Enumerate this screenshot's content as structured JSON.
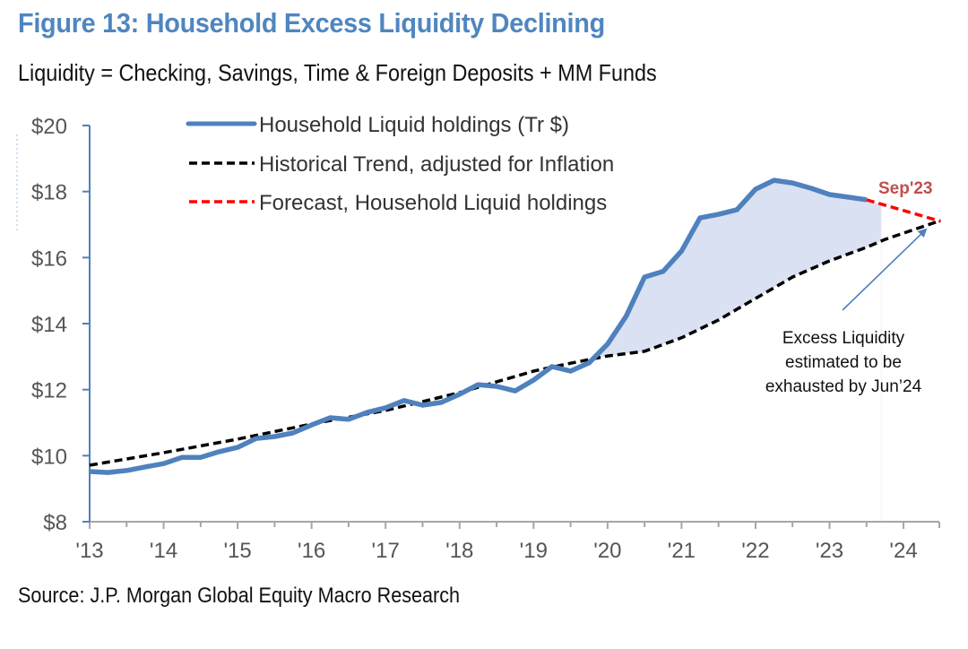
{
  "header": {
    "title": "Figure 13: Household Excess Liquidity Declining",
    "subtitle": "Liquidity = Checking, Savings, Time & Foreign Deposits + MM Funds"
  },
  "footer": {
    "source": "Source: J.P. Morgan Global Equity Macro Research"
  },
  "colors": {
    "title": "#4f86c0",
    "holdings": "#4f81bd",
    "trend": "#000000",
    "forecast": "#ff0000",
    "fill": "#dae1f2",
    "annotation_red": "#c0504d",
    "axis_y": "#4f81bd",
    "axis_x": "#a6a6a6"
  },
  "chart_data": {
    "type": "line",
    "title": "Figure 13: Household Excess Liquidity Declining",
    "subtitle": "Liquidity = Checking, Savings, Time & Foreign Deposits + MM Funds",
    "xlabel": "",
    "ylabel": "",
    "xlim": [
      2013,
      2024.5
    ],
    "ylim": [
      8,
      20
    ],
    "x_ticks": [
      2013,
      2014,
      2015,
      2016,
      2017,
      2018,
      2019,
      2020,
      2021,
      2022,
      2023,
      2024
    ],
    "x_tick_labels": [
      "'13",
      "'14",
      "'15",
      "'16",
      "'17",
      "'18",
      "'19",
      "'20",
      "'21",
      "'22",
      "'23",
      "'24"
    ],
    "y_ticks": [
      8,
      10,
      12,
      14,
      16,
      18,
      20
    ],
    "y_tick_labels": [
      "$8",
      "$10",
      "$12",
      "$14",
      "$16",
      "$18",
      "$20"
    ],
    "grid": false,
    "legend_position": "top-left",
    "series": [
      {
        "name": "Household Liquid holdings (Tr $)",
        "style": "solid",
        "x": [
          2013.0,
          2013.25,
          2013.5,
          2013.75,
          2014.0,
          2014.25,
          2014.5,
          2014.75,
          2015.0,
          2015.25,
          2015.5,
          2015.75,
          2016.0,
          2016.25,
          2016.5,
          2016.75,
          2017.0,
          2017.25,
          2017.5,
          2017.75,
          2018.0,
          2018.25,
          2018.5,
          2018.75,
          2019.0,
          2019.25,
          2019.5,
          2019.75,
          2020.0,
          2020.25,
          2020.5,
          2020.75,
          2021.0,
          2021.25,
          2021.5,
          2021.75,
          2022.0,
          2022.25,
          2022.5,
          2022.75,
          2023.0,
          2023.25,
          2023.5
        ],
        "values": [
          9.52,
          9.49,
          9.55,
          9.66,
          9.76,
          9.95,
          9.95,
          10.12,
          10.25,
          10.52,
          10.58,
          10.69,
          10.93,
          11.15,
          11.1,
          11.31,
          11.45,
          11.67,
          11.53,
          11.61,
          11.86,
          12.15,
          12.1,
          11.96,
          12.29,
          12.7,
          12.56,
          12.81,
          13.38,
          14.22,
          15.41,
          15.58,
          16.2,
          17.2,
          17.31,
          17.45,
          18.07,
          18.34,
          18.26,
          18.1,
          17.91,
          17.83,
          17.75
        ]
      },
      {
        "name": "Historical Trend, adjusted for Inflation",
        "style": "dashed",
        "x": [
          2013.0,
          2014.0,
          2015.0,
          2016.0,
          2017.0,
          2018.0,
          2019.0,
          2019.5,
          2020.0,
          2020.5,
          2021.0,
          2021.5,
          2022.0,
          2022.5,
          2023.0,
          2023.5,
          2023.75,
          2024.0,
          2024.5
        ],
        "values": [
          9.71,
          10.09,
          10.5,
          10.96,
          11.37,
          11.91,
          12.56,
          12.8,
          13.02,
          13.16,
          13.57,
          14.11,
          14.76,
          15.41,
          15.9,
          16.31,
          16.55,
          16.74,
          17.12
        ]
      },
      {
        "name": "Forecast, Household Liquid holdings",
        "style": "dashed",
        "x": [
          2023.5,
          2024.5
        ],
        "values": [
          17.75,
          17.1
        ]
      }
    ],
    "shaded_area": {
      "description": "Excess liquidity between holdings and trend",
      "x_range": [
        2019.75,
        2023.7
      ]
    },
    "annotations": [
      {
        "text": "Sep'23",
        "style": "bold-red"
      },
      {
        "text_lines": [
          "Excess Liquidity",
          "estimated to be",
          "exhausted by Jun’24"
        ],
        "arrow_to": [
          2024.4,
          17.05
        ]
      }
    ]
  }
}
